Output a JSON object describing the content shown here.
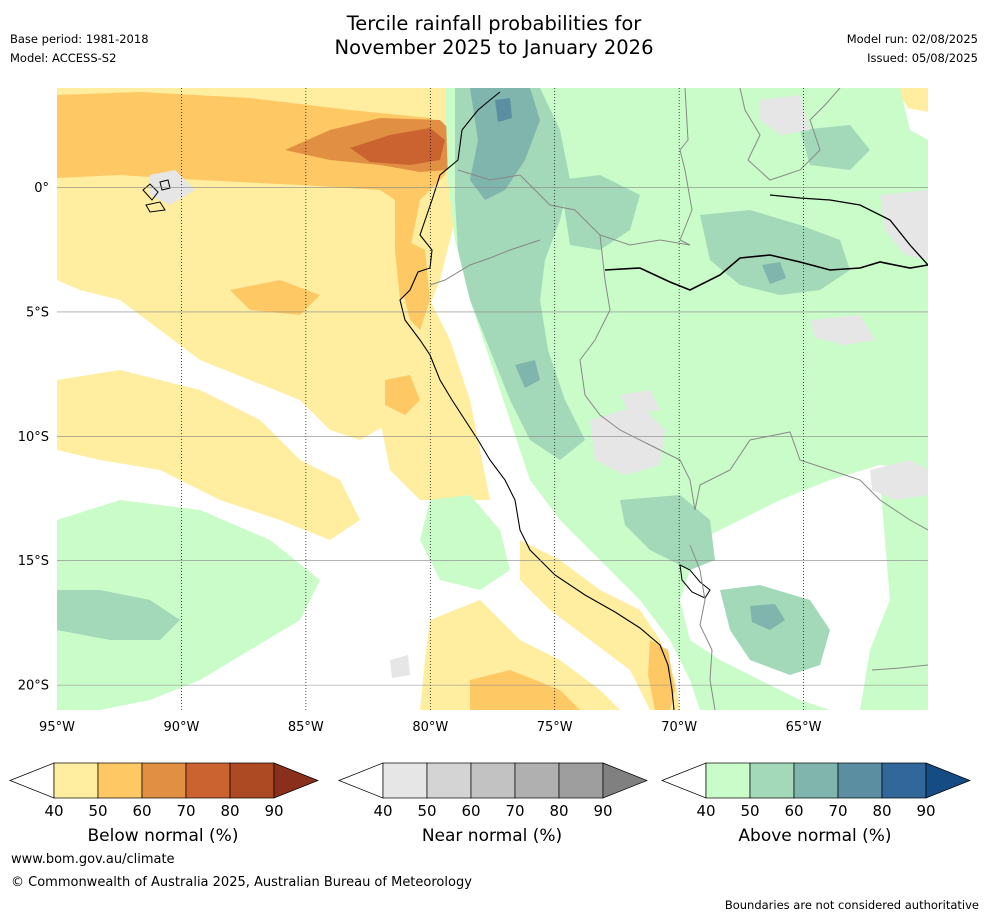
{
  "header": {
    "title_line1": "Tercile rainfall probabilities for",
    "title_line2": "November 2025 to January 2026",
    "base_period": "Base period: 1981-2018",
    "model": "Model: ACCESS-S2",
    "model_run": "Model run: 02/08/2025",
    "issued": "Issued: 05/08/2025"
  },
  "map": {
    "lon_range": [
      -95,
      -60
    ],
    "lat_range": [
      -21,
      4
    ],
    "lon_ticks": [
      {
        "value": -95,
        "label": "95°W"
      },
      {
        "value": -90,
        "label": "90°W"
      },
      {
        "value": -85,
        "label": "85°W"
      },
      {
        "value": -80,
        "label": "80°W"
      },
      {
        "value": -75,
        "label": "75°W"
      },
      {
        "value": -70,
        "label": "70°W"
      },
      {
        "value": -65,
        "label": "65°W"
      }
    ],
    "lat_ticks": [
      {
        "value": 0,
        "label": "0°"
      },
      {
        "value": -5,
        "label": "5°S"
      },
      {
        "value": -10,
        "label": "10°S"
      },
      {
        "value": -15,
        "label": "15°S"
      },
      {
        "value": -20,
        "label": "20°S"
      }
    ],
    "gridlines": true
  },
  "colorbars": [
    {
      "title": "Below normal (%)",
      "ticks": [
        "40",
        "50",
        "60",
        "70",
        "80",
        "90"
      ],
      "colors": [
        "#ffffff",
        "#ffeda0",
        "#fec965",
        "#e08f43",
        "#cb6331",
        "#ad4a24",
        "#8a2f1c"
      ]
    },
    {
      "title": "Near normal (%)",
      "ticks": [
        "40",
        "50",
        "60",
        "70",
        "80",
        "90"
      ],
      "colors": [
        "#ffffff",
        "#e6e6e6",
        "#d4d4d4",
        "#c2c2c2",
        "#b0b0b0",
        "#9e9e9e",
        "#808080"
      ]
    },
    {
      "title": "Above normal (%)",
      "ticks": [
        "40",
        "50",
        "60",
        "70",
        "80",
        "90"
      ],
      "colors": [
        "#ffffff",
        "#c9fcc9",
        "#a3d8b9",
        "#7fb5ad",
        "#5a8ea0",
        "#316799",
        "#154c83"
      ]
    }
  ],
  "footer": {
    "url": "www.bom.gov.au/climate",
    "copyright": "© Commonwealth of Australia 2025, Australian Bureau of Meteorology",
    "disclaimer": "Boundaries are not considered authoritative"
  },
  "colors": {
    "below_50": "#ffeda0",
    "below_60": "#fec965",
    "below_70": "#e08f43",
    "below_80": "#cb6331",
    "near_50": "#e6e6e6",
    "above_50": "#c9fcc9",
    "above_60": "#a3d8b9",
    "above_70": "#7fb5ad"
  }
}
